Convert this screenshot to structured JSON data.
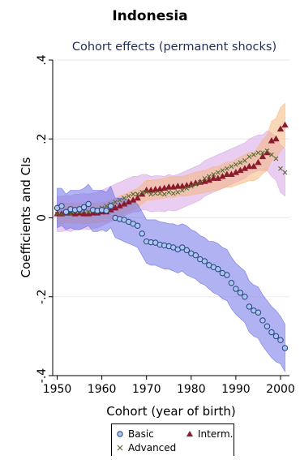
{
  "page": {
    "heading": "Indonesia"
  },
  "chart_data": {
    "type": "scatter",
    "title": "Cohort effects (permanent shocks)",
    "xlabel": "Cohort (year of birth)",
    "ylabel": "Coefficients and CIs",
    "xlim": [
      1949,
      2002
    ],
    "ylim": [
      -0.4,
      0.4
    ],
    "x_ticks": [
      1950,
      1960,
      1970,
      1980,
      1990,
      2000
    ],
    "y_ticks": [
      0.4,
      0.2,
      0,
      -0.2,
      -0.4
    ],
    "y_tick_labels": [
      ".4",
      ".2",
      "0",
      "-.2",
      "-.4"
    ],
    "grid": true,
    "legend_position": "bottom",
    "colors": {
      "basic": "#3b4cc0",
      "basic_band": "#6f73e8",
      "interm": "#8b1a2b",
      "interm_band": "#f6b77e",
      "advanced": "#556b2f",
      "advanced_band": "#d7a6e6"
    },
    "series": [
      {
        "name": "Basic",
        "marker": "circle",
        "x": [
          1950,
          1951,
          1952,
          1953,
          1954,
          1955,
          1956,
          1957,
          1958,
          1959,
          1960,
          1961,
          1962,
          1963,
          1964,
          1965,
          1966,
          1967,
          1968,
          1969,
          1970,
          1971,
          1972,
          1973,
          1974,
          1975,
          1976,
          1977,
          1978,
          1979,
          1980,
          1981,
          1982,
          1983,
          1984,
          1985,
          1986,
          1987,
          1988,
          1989,
          1990,
          1991,
          1992,
          1993,
          1994,
          1995,
          1996,
          1997,
          1998,
          1999,
          2000,
          2001
        ],
        "y": [
          0.025,
          0.03,
          0.015,
          0.022,
          0.02,
          0.022,
          0.027,
          0.035,
          0.02,
          0.018,
          0.02,
          0.018,
          0.03,
          0,
          -0.003,
          -0.005,
          -0.01,
          -0.015,
          -0.02,
          -0.04,
          -0.06,
          -0.062,
          -0.063,
          -0.068,
          -0.07,
          -0.072,
          -0.075,
          -0.08,
          -0.075,
          -0.082,
          -0.09,
          -0.095,
          -0.105,
          -0.11,
          -0.12,
          -0.125,
          -0.13,
          -0.14,
          -0.145,
          -0.165,
          -0.18,
          -0.19,
          -0.2,
          -0.225,
          -0.235,
          -0.24,
          -0.26,
          -0.275,
          -0.29,
          -0.3,
          -0.31,
          -0.33
        ],
        "lower": [
          -0.025,
          -0.02,
          -0.03,
          -0.025,
          -0.03,
          -0.03,
          -0.025,
          -0.02,
          -0.035,
          -0.035,
          -0.03,
          -0.035,
          -0.025,
          -0.05,
          -0.055,
          -0.06,
          -0.065,
          -0.07,
          -0.075,
          -0.095,
          -0.115,
          -0.12,
          -0.12,
          -0.125,
          -0.13,
          -0.13,
          -0.135,
          -0.14,
          -0.135,
          -0.145,
          -0.15,
          -0.155,
          -0.165,
          -0.17,
          -0.18,
          -0.19,
          -0.195,
          -0.205,
          -0.21,
          -0.23,
          -0.245,
          -0.255,
          -0.265,
          -0.29,
          -0.3,
          -0.305,
          -0.325,
          -0.34,
          -0.355,
          -0.365,
          -0.37,
          -0.39
        ],
        "upper": [
          0.075,
          0.075,
          0.06,
          0.07,
          0.07,
          0.07,
          0.075,
          0.085,
          0.07,
          0.07,
          0.07,
          0.065,
          0.08,
          0.05,
          0.05,
          0.05,
          0.045,
          0.04,
          0.035,
          0.015,
          -0.005,
          -0.005,
          -0.005,
          -0.01,
          -0.012,
          -0.015,
          -0.015,
          -0.02,
          -0.015,
          -0.02,
          -0.03,
          -0.035,
          -0.045,
          -0.05,
          -0.06,
          -0.06,
          -0.065,
          -0.075,
          -0.08,
          -0.1,
          -0.115,
          -0.125,
          -0.135,
          -0.16,
          -0.17,
          -0.175,
          -0.195,
          -0.21,
          -0.225,
          -0.235,
          -0.25,
          -0.27
        ]
      },
      {
        "name": "Interm.",
        "marker": "triangle",
        "x": [
          1950,
          1951,
          1952,
          1953,
          1954,
          1955,
          1956,
          1957,
          1958,
          1959,
          1960,
          1961,
          1962,
          1963,
          1964,
          1965,
          1966,
          1967,
          1968,
          1969,
          1970,
          1971,
          1972,
          1973,
          1974,
          1975,
          1976,
          1977,
          1978,
          1979,
          1980,
          1981,
          1982,
          1983,
          1984,
          1985,
          1986,
          1987,
          1988,
          1989,
          1990,
          1991,
          1992,
          1993,
          1994,
          1995,
          1996,
          1997,
          1998,
          1999,
          2000,
          2001
        ],
        "y": [
          0.01,
          0.01,
          0.012,
          0.012,
          0.01,
          0.012,
          0.01,
          0.01,
          0.012,
          0.012,
          0.015,
          0.015,
          0.02,
          0.025,
          0.03,
          0.035,
          0.04,
          0.045,
          0.05,
          0.06,
          0.07,
          0.07,
          0.072,
          0.073,
          0.075,
          0.078,
          0.078,
          0.08,
          0.08,
          0.082,
          0.085,
          0.088,
          0.09,
          0.092,
          0.095,
          0.1,
          0.1,
          0.105,
          0.11,
          0.11,
          0.115,
          0.12,
          0.125,
          0.13,
          0.13,
          0.14,
          0.155,
          0.165,
          0.195,
          0.2,
          0.225,
          0.235
        ],
        "lower": [
          -0.015,
          -0.015,
          -0.012,
          -0.012,
          -0.015,
          -0.012,
          -0.015,
          -0.015,
          -0.013,
          -0.013,
          -0.01,
          -0.01,
          -0.005,
          0,
          0.005,
          0.01,
          0.015,
          0.02,
          0.025,
          0.035,
          0.045,
          0.045,
          0.047,
          0.048,
          0.05,
          0.052,
          0.052,
          0.055,
          0.055,
          0.056,
          0.058,
          0.06,
          0.062,
          0.064,
          0.066,
          0.07,
          0.07,
          0.074,
          0.078,
          0.078,
          0.082,
          0.086,
          0.09,
          0.094,
          0.094,
          0.1,
          0.112,
          0.12,
          0.145,
          0.148,
          0.17,
          0.18
        ],
        "upper": [
          0.035,
          0.035,
          0.037,
          0.037,
          0.035,
          0.037,
          0.035,
          0.035,
          0.037,
          0.037,
          0.04,
          0.04,
          0.045,
          0.05,
          0.055,
          0.06,
          0.065,
          0.07,
          0.075,
          0.085,
          0.095,
          0.095,
          0.097,
          0.098,
          0.1,
          0.104,
          0.104,
          0.105,
          0.105,
          0.108,
          0.112,
          0.116,
          0.118,
          0.12,
          0.124,
          0.13,
          0.13,
          0.136,
          0.142,
          0.142,
          0.148,
          0.154,
          0.16,
          0.166,
          0.166,
          0.18,
          0.198,
          0.21,
          0.245,
          0.252,
          0.28,
          0.29
        ]
      },
      {
        "name": "Advanced",
        "marker": "x",
        "x": [
          1950,
          1951,
          1952,
          1953,
          1954,
          1955,
          1956,
          1957,
          1958,
          1959,
          1960,
          1961,
          1962,
          1963,
          1964,
          1965,
          1966,
          1967,
          1968,
          1969,
          1970,
          1971,
          1972,
          1973,
          1974,
          1975,
          1976,
          1977,
          1978,
          1979,
          1980,
          1981,
          1982,
          1983,
          1984,
          1985,
          1986,
          1987,
          1988,
          1989,
          1990,
          1991,
          1992,
          1993,
          1994,
          1995,
          1996,
          1997,
          1998,
          1999,
          2000,
          2001
        ],
        "y": [
          0.01,
          0.01,
          0.012,
          0.01,
          0.015,
          0.015,
          0.017,
          0.015,
          0.018,
          0.02,
          0.025,
          0.03,
          0.035,
          0.04,
          0.045,
          0.05,
          0.055,
          0.06,
          0.06,
          0.065,
          0.065,
          0.06,
          0.062,
          0.062,
          0.06,
          0.065,
          0.062,
          0.065,
          0.07,
          0.075,
          0.08,
          0.085,
          0.09,
          0.1,
          0.105,
          0.11,
          0.115,
          0.12,
          0.125,
          0.13,
          0.135,
          0.14,
          0.145,
          0.155,
          0.16,
          0.165,
          0.165,
          0.17,
          0.16,
          0.15,
          0.125,
          0.115
        ],
        "lower": [
          -0.035,
          -0.035,
          -0.032,
          -0.035,
          -0.03,
          -0.03,
          -0.028,
          -0.03,
          -0.027,
          -0.025,
          -0.02,
          -0.015,
          -0.01,
          -0.005,
          0,
          0.005,
          0.01,
          0.015,
          0.015,
          0.02,
          0.02,
          0.015,
          0.017,
          0.017,
          0.015,
          0.02,
          0.017,
          0.02,
          0.025,
          0.03,
          0.035,
          0.04,
          0.045,
          0.055,
          0.06,
          0.065,
          0.07,
          0.075,
          0.08,
          0.085,
          0.09,
          0.095,
          0.1,
          0.11,
          0.115,
          0.12,
          0.12,
          0.12,
          0.105,
          0.095,
          0.065,
          0.055
        ],
        "upper": [
          0.055,
          0.055,
          0.057,
          0.055,
          0.06,
          0.06,
          0.062,
          0.06,
          0.063,
          0.065,
          0.07,
          0.075,
          0.08,
          0.085,
          0.09,
          0.095,
          0.1,
          0.105,
          0.105,
          0.11,
          0.11,
          0.105,
          0.107,
          0.107,
          0.105,
          0.11,
          0.107,
          0.11,
          0.115,
          0.12,
          0.125,
          0.13,
          0.135,
          0.145,
          0.15,
          0.155,
          0.16,
          0.165,
          0.17,
          0.175,
          0.18,
          0.185,
          0.19,
          0.2,
          0.205,
          0.21,
          0.21,
          0.22,
          0.215,
          0.205,
          0.185,
          0.175
        ]
      }
    ]
  }
}
